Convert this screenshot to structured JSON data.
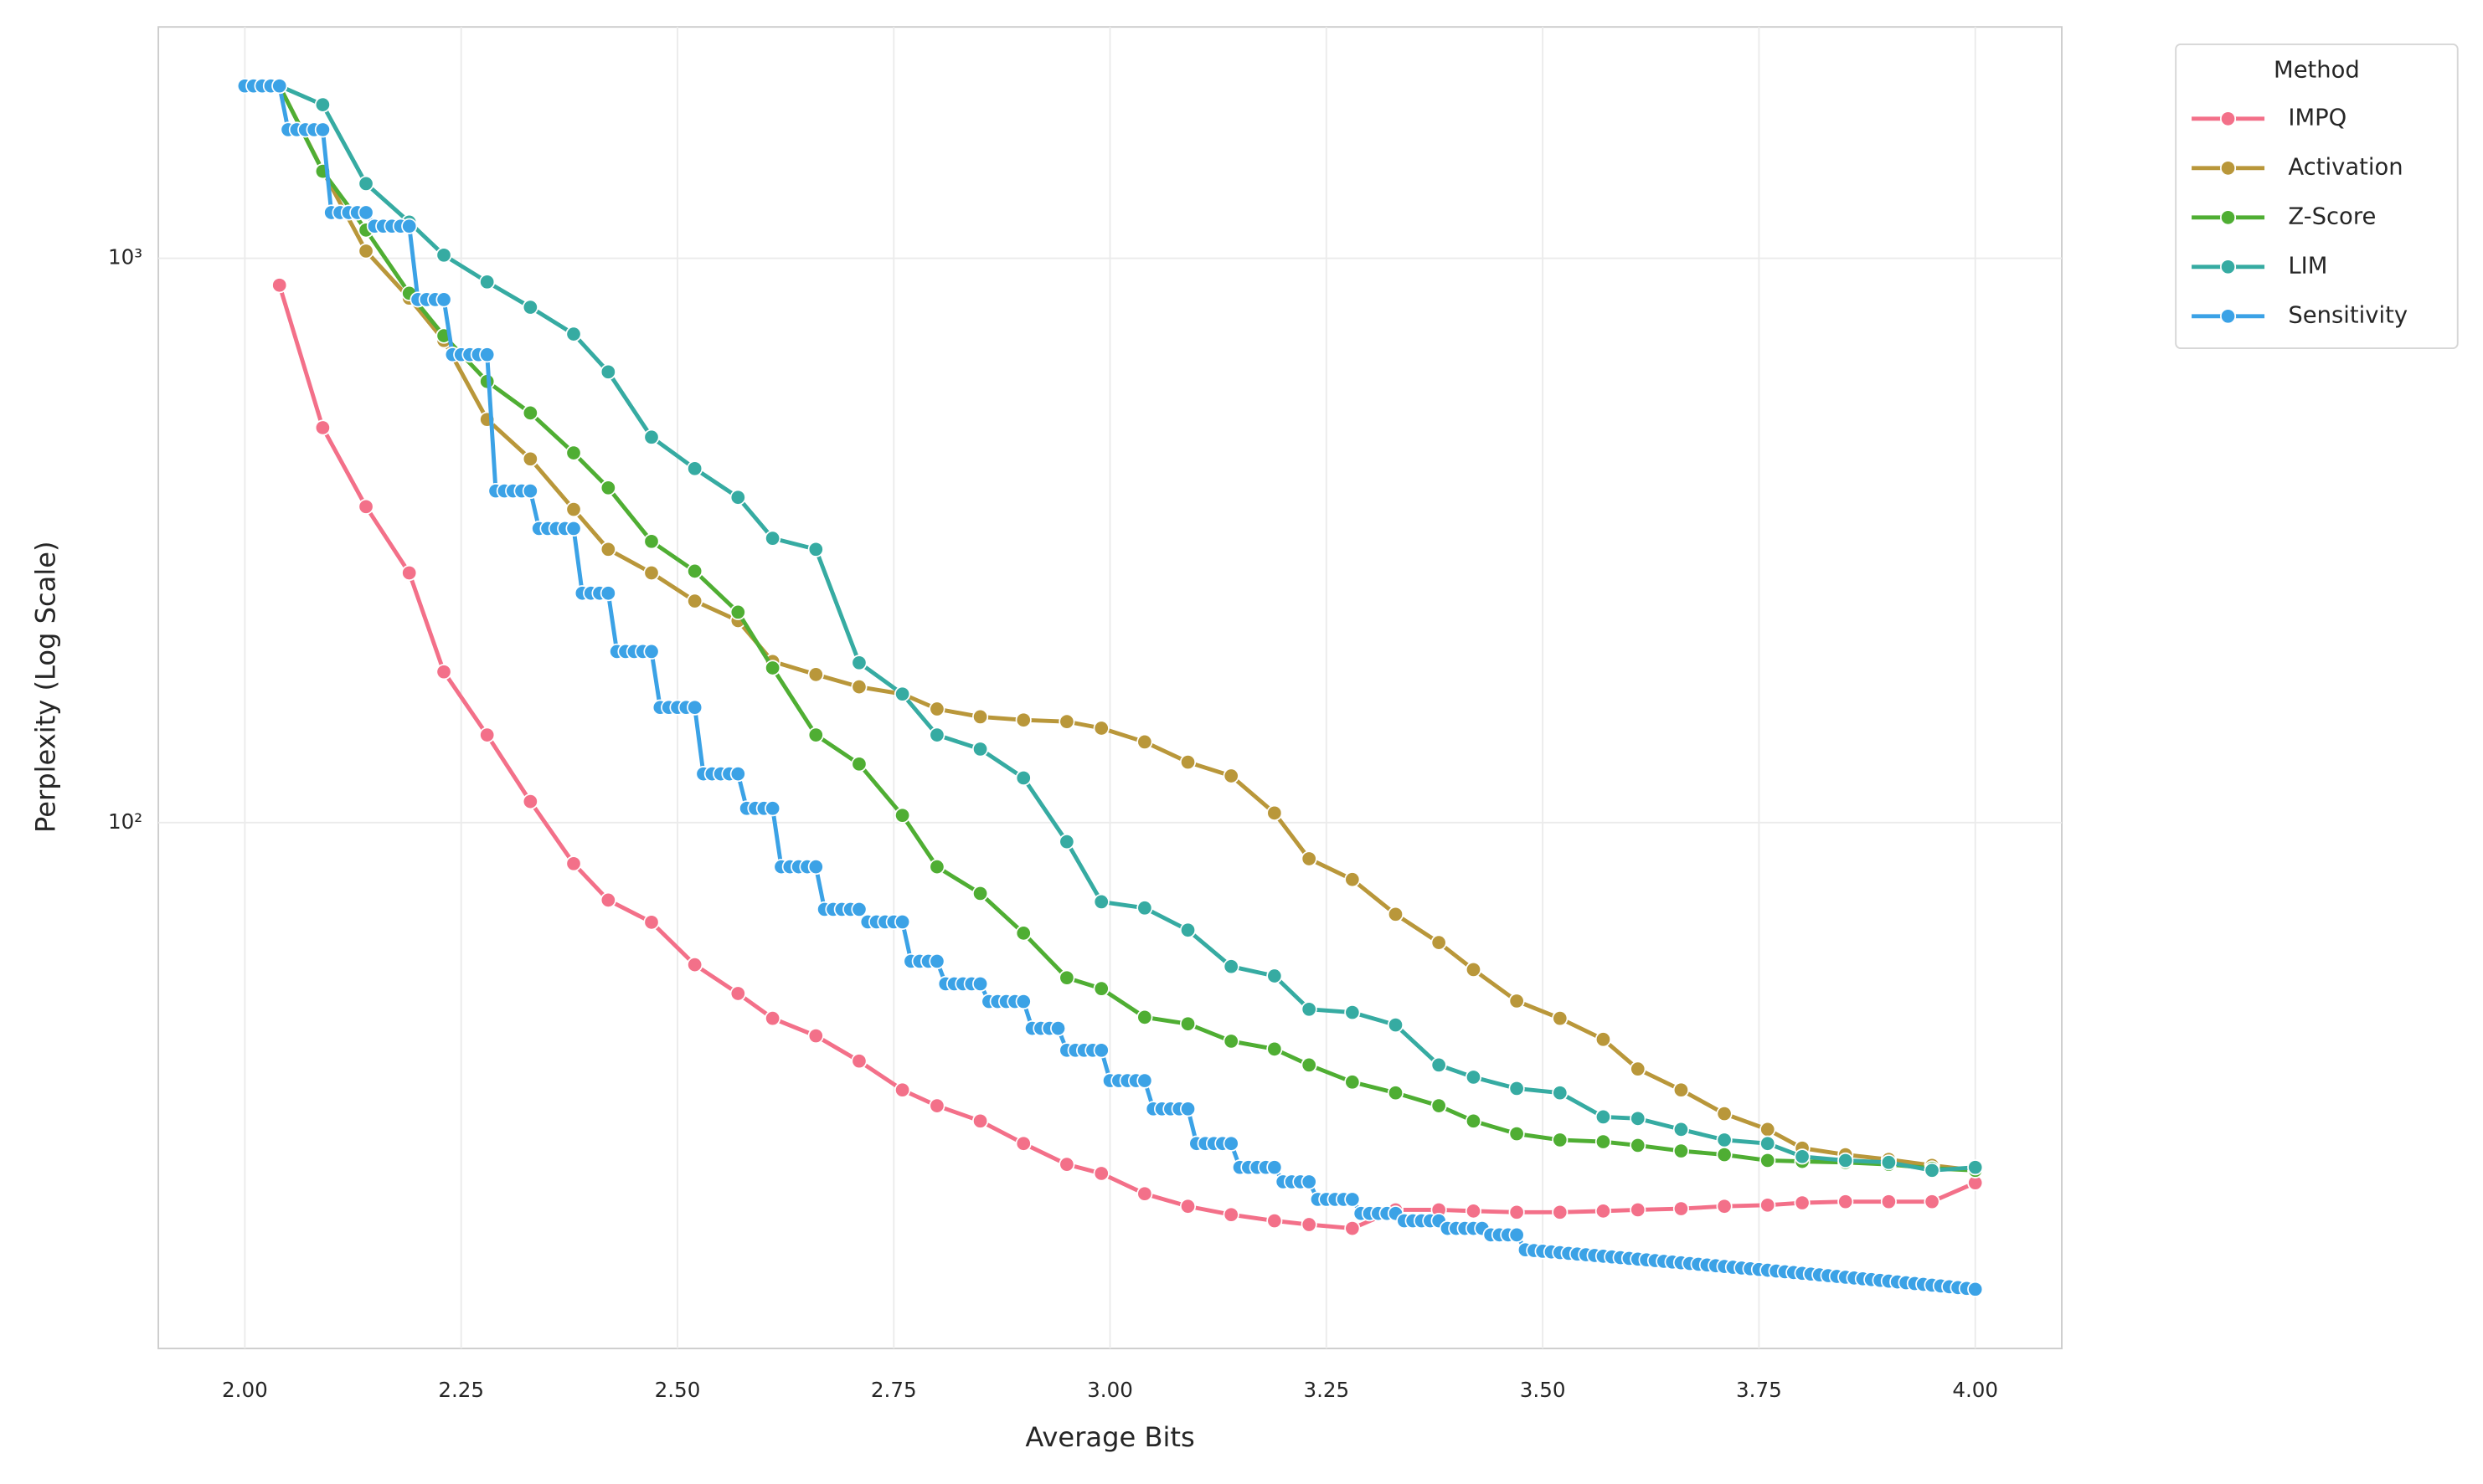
{
  "chart_data": {
    "type": "line",
    "xlabel": "Average Bits",
    "ylabel": "Perplexity (Log Scale)",
    "legend_title": "Method",
    "legend": "outside-upper-right",
    "grid": true,
    "yscale": "log",
    "xlim": [
      1.9,
      4.1
    ],
    "ylim": [
      11.7,
      2570
    ],
    "xticks": [
      {
        "value": 2,
        "label": "2.00"
      },
      2.25,
      {
        "value": 2.5,
        "label": "2.50"
      },
      2.75,
      {
        "value": 3,
        "label": "3.00"
      },
      3.25,
      {
        "value": 3.5,
        "label": "3.50"
      },
      3.75,
      {
        "value": 4,
        "label": "4.00"
      }
    ],
    "yticks": [
      {
        "value": 100,
        "label": "10²"
      },
      {
        "value": 1000,
        "label": "10³"
      }
    ],
    "series": [
      {
        "name": "IMPQ",
        "color": "#f37089",
        "x": [
          2.04,
          2.09,
          2.14,
          2.19,
          2.23,
          2.28,
          2.33,
          2.38,
          2.42,
          2.47,
          2.52,
          2.57,
          2.61,
          2.66,
          2.71,
          2.76,
          2.8,
          2.85,
          2.9,
          2.95,
          2.99,
          3.04,
          3.09,
          3.14,
          3.19,
          3.23,
          3.28,
          3.33,
          3.38,
          3.42,
          3.47,
          3.52,
          3.57,
          3.61,
          3.66,
          3.71,
          3.76,
          3.8,
          3.85,
          3.9,
          3.95,
          4
        ],
        "values": [
          896,
          501,
          363,
          277,
          185,
          143,
          109,
          84.6,
          72.9,
          66.6,
          56,
          49.8,
          45,
          41.9,
          37.8,
          33.6,
          31.5,
          29.6,
          27,
          24.8,
          23.9,
          22,
          20.9,
          20.2,
          19.7,
          19.4,
          19.1,
          20.6,
          20.6,
          20.5,
          20.4,
          20.4,
          20.5,
          20.6,
          20.7,
          20.9,
          21,
          21.2,
          21.3,
          21.3,
          21.3,
          23
        ]
      },
      {
        "name": "Activation",
        "color": "#b9973a",
        "x": [
          2.04,
          2.09,
          2.14,
          2.19,
          2.23,
          2.28,
          2.33,
          2.38,
          2.42,
          2.47,
          2.52,
          2.57,
          2.61,
          2.66,
          2.71,
          2.76,
          2.8,
          2.85,
          2.9,
          2.95,
          2.99,
          3.04,
          3.09,
          3.14,
          3.19,
          3.23,
          3.28,
          3.33,
          3.38,
          3.42,
          3.47,
          3.52,
          3.57,
          3.61,
          3.66,
          3.71,
          3.76,
          3.8,
          3.85,
          3.9,
          3.95,
          4
        ],
        "values": [
          2020,
          1430,
          1030,
          850,
          715,
          518,
          441,
          359,
          305,
          277,
          247,
          228,
          193,
          183,
          174,
          169,
          159,
          154,
          152,
          151,
          147,
          139,
          128,
          121,
          104,
          86.3,
          79.3,
          68.8,
          61.3,
          54.9,
          48.3,
          45,
          41.3,
          36.6,
          33.6,
          30.5,
          28.6,
          26.5,
          25.8,
          25.3,
          24.7,
          24.2
        ]
      },
      {
        "name": "Z-Score",
        "color": "#4fae33",
        "x": [
          2.04,
          2.09,
          2.14,
          2.19,
          2.23,
          2.28,
          2.33,
          2.38,
          2.42,
          2.47,
          2.52,
          2.57,
          2.61,
          2.66,
          2.71,
          2.76,
          2.8,
          2.85,
          2.9,
          2.95,
          2.99,
          3.04,
          3.09,
          3.14,
          3.19,
          3.23,
          3.28,
          3.33,
          3.38,
          3.42,
          3.47,
          3.52,
          3.57,
          3.61,
          3.66,
          3.71,
          3.76,
          3.8,
          3.85,
          3.9,
          3.95,
          4
        ],
        "values": [
          2020,
          1426,
          1122,
          867,
          729,
          605,
          532,
          452,
          392,
          315,
          279,
          236,
          188,
          143,
          127,
          103,
          83.5,
          74.9,
          63.7,
          53.1,
          50.8,
          45.2,
          44,
          41,
          39.7,
          37.2,
          34.7,
          33.2,
          31.5,
          29.6,
          28.1,
          27.4,
          27.2,
          26.8,
          26.2,
          25.8,
          25.2,
          25.1,
          25,
          24.8,
          24.4,
          24.2
        ]
      },
      {
        "name": "LIM",
        "color": "#36aba2",
        "x": [
          2.04,
          2.09,
          2.14,
          2.19,
          2.23,
          2.28,
          2.33,
          2.38,
          2.42,
          2.47,
          2.52,
          2.57,
          2.61,
          2.66,
          2.71,
          2.76,
          2.8,
          2.85,
          2.9,
          2.95,
          2.99,
          3.04,
          3.09,
          3.14,
          3.19,
          3.23,
          3.28,
          3.33,
          3.38,
          3.42,
          3.47,
          3.52,
          3.57,
          3.61,
          3.66,
          3.71,
          3.76,
          3.8,
          3.85,
          3.9,
          3.95,
          4
        ],
        "values": [
          2020,
          1871,
          1356,
          1159,
          1013,
          908,
          819,
          734,
          629,
          482,
          424,
          377,
          319,
          305,
          192,
          169,
          143,
          135,
          120,
          92.5,
          72.4,
          70.6,
          64.5,
          55.6,
          53.5,
          46.7,
          46.1,
          43.8,
          37.2,
          35.4,
          33.8,
          33.2,
          30.1,
          29.9,
          28.6,
          27.4,
          27,
          25.6,
          25.2,
          25,
          24.2,
          24.5
        ]
      },
      {
        "name": "Sensitivity",
        "color": "#3ba2e6",
        "x": [
          2,
          2.01,
          2.02,
          2.03,
          2.04,
          2.05,
          2.06,
          2.07,
          2.08,
          2.09,
          2.1,
          2.11,
          2.12,
          2.13,
          2.14,
          2.15,
          2.16,
          2.17,
          2.18,
          2.19,
          2.2,
          2.21,
          2.22,
          2.23,
          2.24,
          2.25,
          2.26,
          2.27,
          2.28,
          2.29,
          2.3,
          2.31,
          2.32,
          2.33,
          2.34,
          2.35,
          2.36,
          2.37,
          2.38,
          2.39,
          2.4,
          2.41,
          2.42,
          2.43,
          2.44,
          2.45,
          2.46,
          2.47,
          2.48,
          2.49,
          2.5,
          2.51,
          2.52,
          2.53,
          2.54,
          2.55,
          2.56,
          2.57,
          2.58,
          2.59,
          2.6,
          2.61,
          2.62,
          2.63,
          2.64,
          2.65,
          2.66,
          2.67,
          2.68,
          2.69,
          2.7,
          2.71,
          2.72,
          2.73,
          2.74,
          2.75,
          2.76,
          2.77,
          2.78,
          2.79,
          2.8,
          2.81,
          2.82,
          2.83,
          2.84,
          2.85,
          2.86,
          2.87,
          2.88,
          2.89,
          2.9,
          2.91,
          2.92,
          2.93,
          2.94,
          2.95,
          2.96,
          2.97,
          2.98,
          2.99,
          3,
          3.01,
          3.02,
          3.03,
          3.04,
          3.05,
          3.06,
          3.07,
          3.08,
          3.09,
          3.1,
          3.11,
          3.12,
          3.13,
          3.14,
          3.15,
          3.16,
          3.17,
          3.18,
          3.19,
          3.2,
          3.21,
          3.22,
          3.23,
          3.24,
          3.25,
          3.26,
          3.27,
          3.28,
          3.29,
          3.3,
          3.31,
          3.32,
          3.33,
          3.34,
          3.35,
          3.36,
          3.37,
          3.38,
          3.39,
          3.4,
          3.41,
          3.42,
          3.43,
          3.44,
          3.45,
          3.46,
          3.47,
          3.48,
          3.49,
          3.5,
          3.51,
          3.52,
          3.53,
          3.54,
          3.55,
          3.56,
          3.57,
          3.58,
          3.59,
          3.6,
          3.61,
          3.62,
          3.63,
          3.64,
          3.65,
          3.66,
          3.67,
          3.68,
          3.69,
          3.7,
          3.71,
          3.72,
          3.73,
          3.74,
          3.75,
          3.76,
          3.77,
          3.78,
          3.79,
          3.8,
          3.81,
          3.82,
          3.83,
          3.84,
          3.85,
          3.86,
          3.87,
          3.88,
          3.89,
          3.9,
          3.91,
          3.92,
          3.93,
          3.94,
          3.95,
          3.96,
          3.97,
          3.98,
          3.99,
          4
        ],
        "values": [
          2020,
          2020,
          2020,
          2020,
          2020,
          1690,
          1690,
          1690,
          1690,
          1690,
          1205,
          1205,
          1205,
          1205,
          1205,
          1140,
          1140,
          1140,
          1140,
          1140,
          845,
          845,
          845,
          845,
          675,
          675,
          675,
          675,
          675,
          387,
          387,
          387,
          387,
          387,
          332,
          332,
          332,
          332,
          332,
          255,
          255,
          255,
          255,
          201,
          201,
          201,
          201,
          201,
          160,
          160,
          160,
          160,
          160,
          122,
          122,
          122,
          122,
          122,
          106,
          106,
          106,
          106,
          83.5,
          83.5,
          83.5,
          83.5,
          83.5,
          70.2,
          70.2,
          70.2,
          70.2,
          70.2,
          66.7,
          66.7,
          66.7,
          66.7,
          66.7,
          56.8,
          56.8,
          56.8,
          56.8,
          51.8,
          51.8,
          51.8,
          51.8,
          51.8,
          48.2,
          48.2,
          48.2,
          48.2,
          48.2,
          43.2,
          43.2,
          43.2,
          43.2,
          39.5,
          39.5,
          39.5,
          39.5,
          39.5,
          34.9,
          34.9,
          34.9,
          34.9,
          34.9,
          31.1,
          31.1,
          31.1,
          31.1,
          31.1,
          27,
          27,
          27,
          27,
          27,
          24.5,
          24.5,
          24.5,
          24.5,
          24.5,
          23.1,
          23.1,
          23.1,
          23.1,
          21.5,
          21.5,
          21.5,
          21.5,
          21.5,
          20.3,
          20.3,
          20.3,
          20.3,
          20.3,
          19.7,
          19.7,
          19.7,
          19.7,
          19.7,
          19.1,
          19.1,
          19.1,
          19.1,
          19.1,
          18.6,
          18.6,
          18.6,
          18.6,
          17.5,
          17.45,
          17.4,
          17.35,
          17.3,
          17.25,
          17.2,
          17.15,
          17.1,
          17.05,
          17,
          16.95,
          16.9,
          16.85,
          16.8,
          16.75,
          16.7,
          16.65,
          16.6,
          16.55,
          16.5,
          16.45,
          16.4,
          16.35,
          16.3,
          16.25,
          16.2,
          16.15,
          16.1,
          16.05,
          16,
          15.95,
          15.9,
          15.85,
          15.8,
          15.75,
          15.7,
          15.65,
          15.6,
          15.55,
          15.5,
          15.45,
          15.4,
          15.35,
          15.3,
          15.25,
          15.2,
          15.15,
          15.1,
          15.05,
          15,
          14.95,
          14.9
        ]
      }
    ]
  }
}
